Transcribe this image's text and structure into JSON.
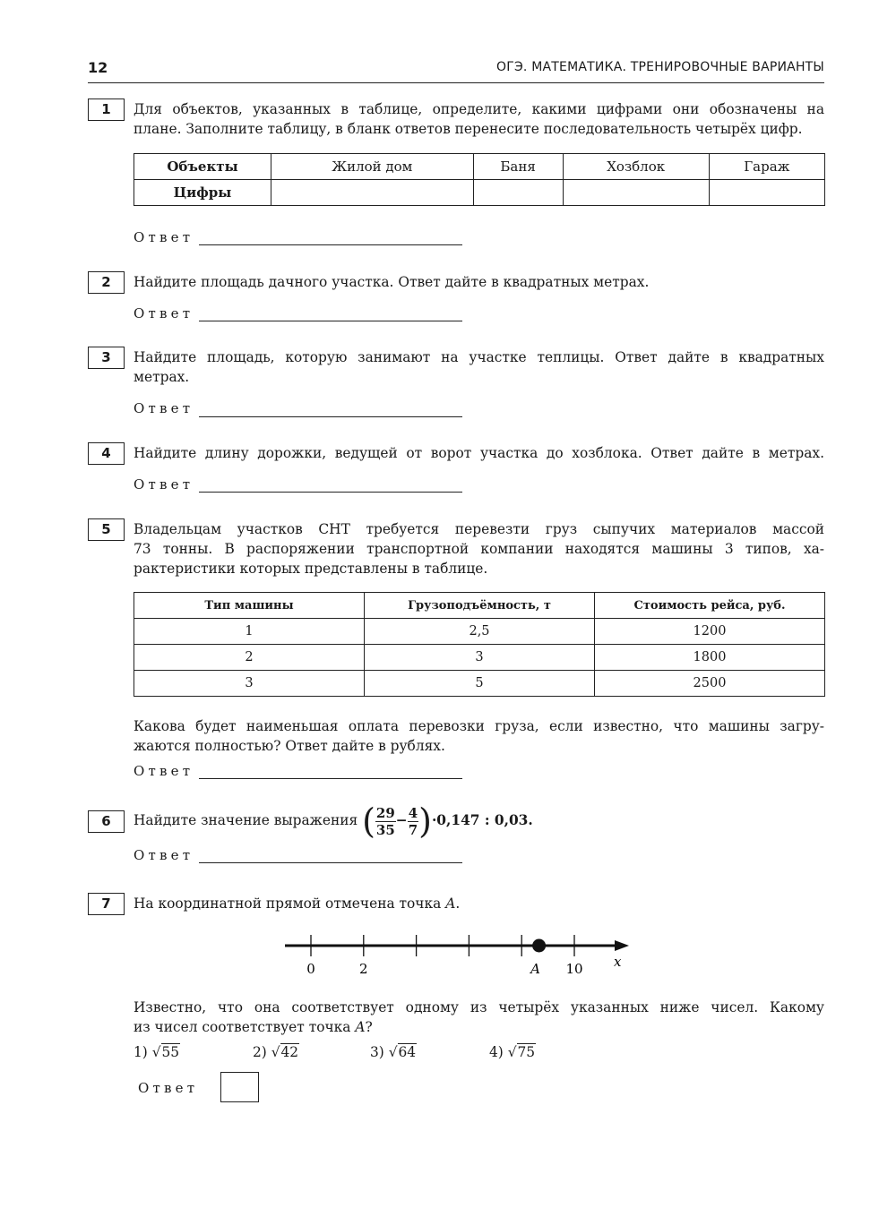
{
  "header": {
    "page_number": "12",
    "running_title": "ОГЭ. МАТЕМАТИКА. ТРЕНИРОВОЧНЫЕ ВАРИАНТЫ"
  },
  "answer_label": "Ответ",
  "tasks": [
    {
      "number": "1",
      "lines": [
        "Для объектов, указанных в таблице, определите, какими цифрами они обозначены на",
        "плане. Заполните таблицу, в бланк ответов перенесите последовательность четырёх цифр."
      ],
      "table": {
        "row_headers": [
          "Объекты",
          "Цифры"
        ],
        "columns": [
          "Жилой дом",
          "Баня",
          "Хозблок",
          "Гараж"
        ],
        "values": [
          "",
          "",
          "",
          ""
        ]
      }
    },
    {
      "number": "2",
      "lines": [
        "Найдите площадь дачного участка. Ответ дайте в квадратных метрах."
      ]
    },
    {
      "number": "3",
      "lines": [
        "Найдите площадь, которую занимают на участке теплицы. Ответ дайте в квадратных",
        "метрах."
      ]
    },
    {
      "number": "4",
      "lines": [
        "Найдите длину дорожки, ведущей от ворот участка до хозблока. Ответ дайте в метрах."
      ]
    },
    {
      "number": "5",
      "lines": [
        "Владельцам участков СНТ требуется перевезти груз сыпучих материалов массой",
        "73 тонны. В распоряжении транспортной компании находятся машины 3 типов, ха-",
        "рактеристики которых представлены в таблице."
      ],
      "table": {
        "headers": [
          "Тип машины",
          "Грузоподъёмность, т",
          "Стоимость рейса, руб."
        ],
        "rows": [
          [
            "1",
            "2,5",
            "1200"
          ],
          [
            "2",
            "3",
            "1800"
          ],
          [
            "3",
            "5",
            "2500"
          ]
        ]
      },
      "after_lines": [
        "Какова будет наименьшая оплата перевозки груза, если известно, что машины загру-",
        "жаются полностью? Ответ дайте в рублях."
      ]
    },
    {
      "number": "6",
      "prompt": "Найдите значение выражения",
      "expr": {
        "f1_num": "29",
        "f1_den": "35",
        "minus": "−",
        "f2_num": "4",
        "f2_den": "7",
        "tail": "·0,147 : 0,03."
      }
    },
    {
      "number": "7",
      "prompt": "На координатной прямой отмечена точка",
      "point": "A",
      "period": ".",
      "number_line": {
        "tick_values": [
          0,
          2,
          4,
          6,
          8,
          10
        ],
        "labels": {
          "0": "0",
          "2": "2",
          "10": "10"
        },
        "point_label": "A",
        "point_value": 8.66,
        "axis_label": "x"
      },
      "after_lines": [
        "Известно, что она соответствует одному из четырёх указанных ниже чисел. Какому",
        "из чисел соответствует точка"
      ],
      "options": [
        {
          "n": "1)",
          "r": "55"
        },
        {
          "n": "2)",
          "r": "42"
        },
        {
          "n": "3)",
          "r": "64"
        },
        {
          "n": "4)",
          "r": "75"
        }
      ]
    }
  ]
}
